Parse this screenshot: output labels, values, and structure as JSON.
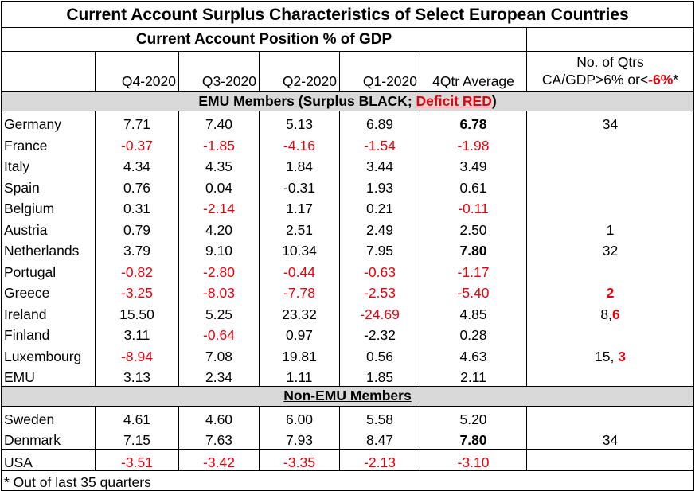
{
  "title": "Current Account Surplus Characteristics of Select European Countries",
  "subtitle": "Current Account Position % of GDP",
  "columns": [
    "Q4-2020",
    "Q3-2020",
    "Q2-2020",
    "Q1-2020",
    "4Qtr Average"
  ],
  "count_header": {
    "line1": "No. of Qtrs",
    "line2_prefix": "CA/GDP>6% or<",
    "line2_highlight": "-6%",
    "line2_suffix": "*"
  },
  "section_emu": {
    "prefix": "EMU Members (Surplus BLACK; ",
    "highlight": "Deficit RED",
    "suffix": ")"
  },
  "section_non_emu": "Non-EMU Members",
  "emu_rows": [
    {
      "name": "Germany",
      "values": [
        "7.71",
        "7.40",
        "5.13",
        "6.89"
      ],
      "neg": [
        false,
        false,
        false,
        false
      ],
      "avg": "6.78",
      "avg_bold": true,
      "avg_neg": false,
      "count": "34",
      "count_red": ""
    },
    {
      "name": "France",
      "values": [
        "-0.37",
        "-1.85",
        "-4.16",
        "-1.54"
      ],
      "neg": [
        true,
        true,
        true,
        true
      ],
      "avg": "-1.98",
      "avg_bold": false,
      "avg_neg": true,
      "count": "",
      "count_red": ""
    },
    {
      "name": "Italy",
      "values": [
        "4.34",
        "4.35",
        "1.84",
        "3.44"
      ],
      "neg": [
        false,
        false,
        false,
        false
      ],
      "avg": "3.49",
      "avg_bold": false,
      "avg_neg": false,
      "count": "",
      "count_red": ""
    },
    {
      "name": "Spain",
      "values": [
        "0.76",
        "0.04",
        "-0.31",
        "1.93"
      ],
      "neg": [
        false,
        false,
        false,
        false
      ],
      "avg": "0.61",
      "avg_bold": false,
      "avg_neg": false,
      "count": "",
      "count_red": ""
    },
    {
      "name": "Belgium",
      "values": [
        "0.31",
        "-2.14",
        "1.17",
        "0.21"
      ],
      "neg": [
        false,
        true,
        false,
        false
      ],
      "avg": "-0.11",
      "avg_bold": false,
      "avg_neg": true,
      "count": "",
      "count_red": ""
    },
    {
      "name": "Austria",
      "values": [
        "0.79",
        "4.20",
        "2.51",
        "2.49"
      ],
      "neg": [
        false,
        false,
        false,
        false
      ],
      "avg": "2.50",
      "avg_bold": false,
      "avg_neg": false,
      "count": "1",
      "count_red": ""
    },
    {
      "name": "Netherlands",
      "values": [
        "3.79",
        "9.10",
        "10.34",
        "7.95"
      ],
      "neg": [
        false,
        false,
        false,
        false
      ],
      "avg": "7.80",
      "avg_bold": true,
      "avg_neg": false,
      "count": "32",
      "count_red": ""
    },
    {
      "name": "Portugal",
      "values": [
        "-0.82",
        "-2.80",
        "-0.44",
        "-0.63"
      ],
      "neg": [
        true,
        true,
        true,
        true
      ],
      "avg": "-1.17",
      "avg_bold": false,
      "avg_neg": true,
      "count": "",
      "count_red": ""
    },
    {
      "name": "Greece",
      "values": [
        "-3.25",
        "-8.03",
        "-7.78",
        "-2.53"
      ],
      "neg": [
        true,
        true,
        true,
        true
      ],
      "avg": "-5.40",
      "avg_bold": false,
      "avg_neg": true,
      "count": "",
      "count_red": "2"
    },
    {
      "name": "Ireland",
      "values": [
        "15.50",
        "5.25",
        "23.32",
        "-24.69"
      ],
      "neg": [
        false,
        false,
        false,
        true
      ],
      "avg": "4.85",
      "avg_bold": false,
      "avg_neg": false,
      "count": "8,",
      "count_red": "6"
    },
    {
      "name": "Finland",
      "values": [
        "3.11",
        "-0.64",
        "0.97",
        "-2.32"
      ],
      "neg": [
        false,
        true,
        false,
        false
      ],
      "avg": "0.28",
      "avg_bold": false,
      "avg_neg": false,
      "count": "",
      "count_red": ""
    },
    {
      "name": "Luxembourg",
      "values": [
        "-8.94",
        "7.08",
        "19.81",
        "0.56"
      ],
      "neg": [
        true,
        false,
        false,
        false
      ],
      "avg": "4.63",
      "avg_bold": false,
      "avg_neg": false,
      "count": "15, ",
      "count_red": "3"
    },
    {
      "name": "EMU",
      "values": [
        "3.13",
        "2.34",
        "1.11",
        "1.85"
      ],
      "neg": [
        false,
        false,
        false,
        false
      ],
      "avg": "2.11",
      "avg_bold": false,
      "avg_neg": false,
      "count": "",
      "count_red": ""
    }
  ],
  "non_emu_rows": [
    {
      "name": "Sweden",
      "values": [
        "4.61",
        "4.60",
        "6.00",
        "5.58"
      ],
      "neg": [
        false,
        false,
        false,
        false
      ],
      "avg": "5.20",
      "avg_bold": false,
      "avg_neg": false,
      "count": "",
      "count_red": ""
    },
    {
      "name": "Denmark",
      "values": [
        "7.15",
        "7.63",
        "7.93",
        "8.47"
      ],
      "neg": [
        false,
        false,
        false,
        false
      ],
      "avg": "7.80",
      "avg_bold": true,
      "avg_neg": false,
      "count": "34",
      "count_red": ""
    }
  ],
  "usa_row": {
    "name": "USA",
    "values": [
      "-3.51",
      "-3.42",
      "-3.35",
      "-2.13"
    ],
    "neg": [
      true,
      true,
      true,
      true
    ],
    "avg": "-3.10",
    "avg_bold": false,
    "avg_neg": true,
    "count": "",
    "count_red": ""
  },
  "footnote": "* Out of last 35 quarters",
  "colors": {
    "negative": "#e8000b",
    "section_fill": "#d9d9d9"
  }
}
